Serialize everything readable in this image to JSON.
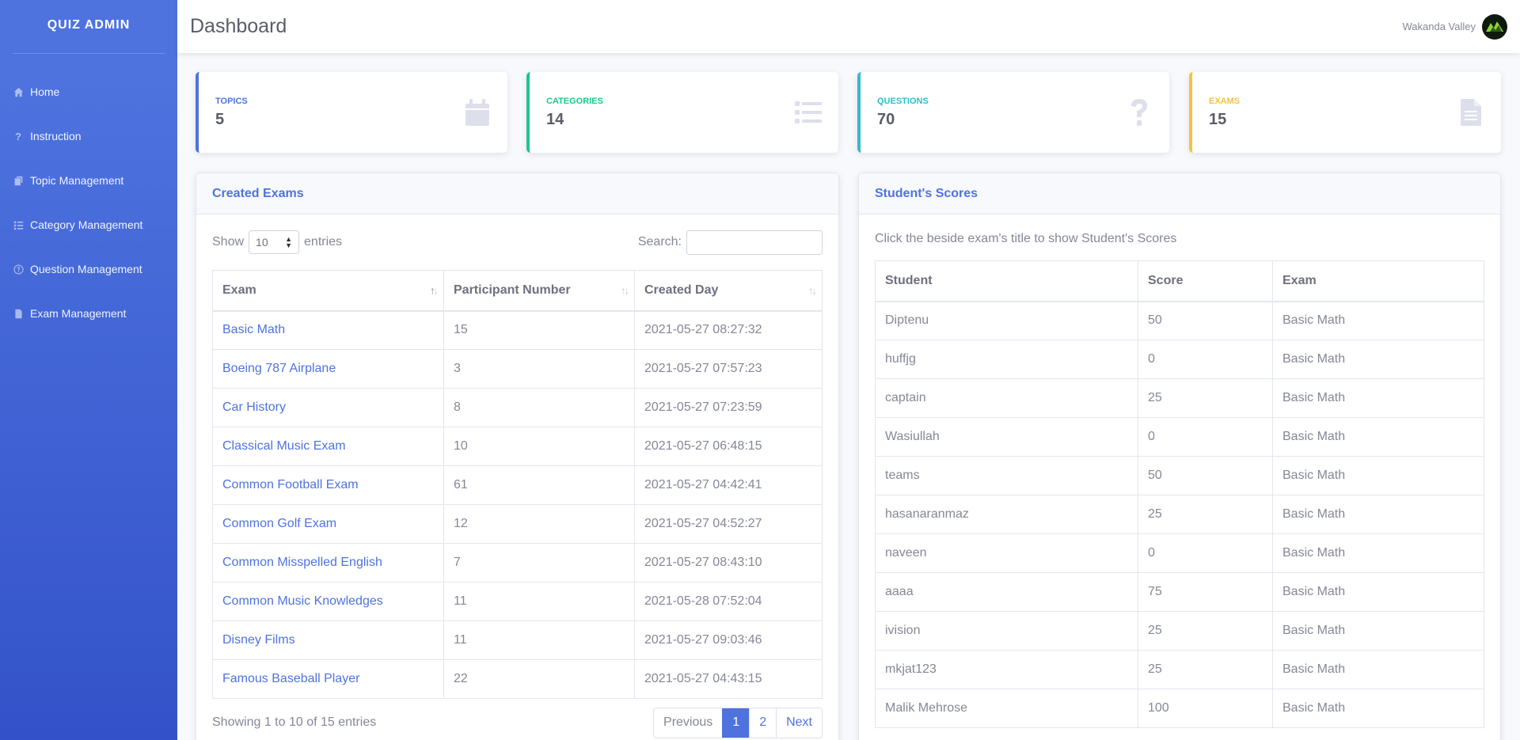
{
  "sidebar": {
    "brand": "QUIZ ADMIN",
    "items": [
      {
        "label": "Home",
        "icon": "home-icon"
      },
      {
        "label": "Instruction",
        "icon": "question-icon"
      },
      {
        "label": "Topic Management",
        "icon": "copy-icon"
      },
      {
        "label": "Category Management",
        "icon": "list-icon"
      },
      {
        "label": "Question Management",
        "icon": "question-circle-icon"
      },
      {
        "label": "Exam Management",
        "icon": "file-icon"
      }
    ]
  },
  "header": {
    "title": "Dashboard",
    "user_name": "Wakanda Valley"
  },
  "stats": [
    {
      "label": "TOPICS",
      "value": "5",
      "color": "#4e73df",
      "icon": "calendar-icon"
    },
    {
      "label": "CATEGORIES",
      "value": "14",
      "color": "#1cc88a",
      "icon": "list-icon"
    },
    {
      "label": "QUESTIONS",
      "value": "70",
      "color": "#36b9cc",
      "icon": "question-icon"
    },
    {
      "label": "EXAMS",
      "value": "15",
      "color": "#f6c23e",
      "icon": "file-icon"
    }
  ],
  "created_exams": {
    "title": "Created Exams",
    "show_label": "Show",
    "entries_label": "entries",
    "page_size": "10",
    "search_label": "Search:",
    "columns": [
      "Exam",
      "Participant Number",
      "Created Day"
    ],
    "rows": [
      [
        "Basic Math",
        "15",
        "2021-05-27 08:27:32"
      ],
      [
        "Boeing 787 Airplane",
        "3",
        "2021-05-27 07:57:23"
      ],
      [
        "Car History",
        "8",
        "2021-05-27 07:23:59"
      ],
      [
        "Classical Music Exam",
        "10",
        "2021-05-27 06:48:15"
      ],
      [
        "Common Football Exam",
        "61",
        "2021-05-27 04:42:41"
      ],
      [
        "Common Golf Exam",
        "12",
        "2021-05-27 04:52:27"
      ],
      [
        "Common Misspelled English",
        "7",
        "2021-05-27 08:43:10"
      ],
      [
        "Common Music Knowledges",
        "11",
        "2021-05-28 07:52:04"
      ],
      [
        "Disney Films",
        "11",
        "2021-05-27 09:03:46"
      ],
      [
        "Famous Baseball Player",
        "22",
        "2021-05-27 04:43:15"
      ]
    ],
    "info": "Showing 1 to 10 of 15 entries",
    "pager": {
      "previous": "Previous",
      "pages": [
        "1",
        "2"
      ],
      "next": "Next",
      "current": "1"
    }
  },
  "scores": {
    "title": "Student's Scores",
    "note": "Click the beside exam's title to show Student's Scores",
    "columns": [
      "Student",
      "Score",
      "Exam"
    ],
    "rows": [
      [
        "Diptenu",
        "50",
        "Basic Math"
      ],
      [
        "huffjg",
        "0",
        "Basic Math"
      ],
      [
        "captain",
        "25",
        "Basic Math"
      ],
      [
        "Wasiullah",
        "0",
        "Basic Math"
      ],
      [
        "teams",
        "50",
        "Basic Math"
      ],
      [
        "hasanaranmaz",
        "25",
        "Basic Math"
      ],
      [
        "naveen",
        "0",
        "Basic Math"
      ],
      [
        "aaaa",
        "75",
        "Basic Math"
      ],
      [
        "ivision",
        "25",
        "Basic Math"
      ],
      [
        "mkjat123",
        "25",
        "Basic Math"
      ],
      [
        "Malik Mehrose",
        "100",
        "Basic Math"
      ]
    ]
  }
}
